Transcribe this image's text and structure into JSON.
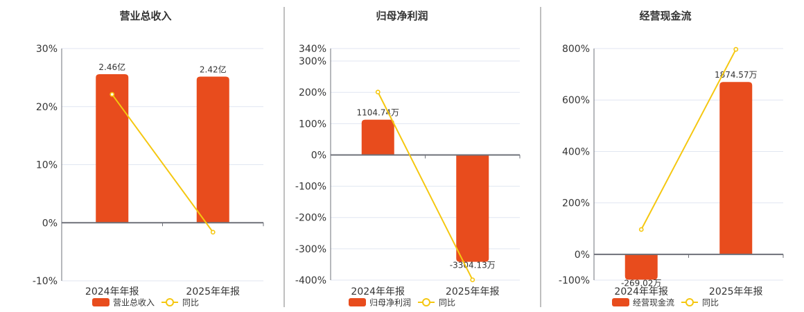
{
  "colors": {
    "bar": "#E84C1D",
    "line": "#F5C710",
    "grid": "#E0E6F1",
    "axis": "#6E7079",
    "separator": "#AAAAAA"
  },
  "chart_data": [
    {
      "type": "bar+line",
      "title": "营业总收入",
      "categories": [
        "2024年年报",
        "2025年年报"
      ],
      "xlabel": "",
      "ylabel": "",
      "ylim": [
        -10,
        30
      ],
      "yticks": [
        30,
        20,
        10,
        0,
        -10
      ],
      "ytick_labels": [
        "30%",
        "20%",
        "10%",
        "0%",
        "-10%"
      ],
      "y2lim": [
        -0.966,
        2.885
      ],
      "grid": true,
      "legend_position": "bottom",
      "legend": {
        "bar_label": "营业总收入",
        "line_label": "同比"
      },
      "series": [
        {
          "name": "营业总收入",
          "type": "bar",
          "axis": "secondary",
          "unit": "亿",
          "values": [
            2.46,
            2.42
          ],
          "labels": [
            "2.46亿",
            "2.42亿"
          ]
        },
        {
          "name": "同比",
          "type": "line",
          "axis": "primary",
          "unit": "%",
          "values": [
            22.1,
            -1.63
          ]
        }
      ]
    },
    {
      "type": "bar+line",
      "title": "归母净利润",
      "categories": [
        "2024年年报",
        "2025年年报"
      ],
      "xlabel": "",
      "ylabel": "",
      "ylim": [
        -400,
        340
      ],
      "yticks": [
        340,
        300,
        200,
        100,
        0,
        -100,
        -200,
        -300,
        -400
      ],
      "ytick_labels": [
        "340%",
        "300%",
        "200%",
        "100%",
        "0%",
        "-100%",
        "-200%",
        "-300%",
        "-400%"
      ],
      "y2lim": [
        -3871,
        3312
      ],
      "grid": true,
      "legend_position": "bottom",
      "legend": {
        "bar_label": "归母净利润",
        "line_label": "同比"
      },
      "series": [
        {
          "name": "归母净利润",
          "type": "bar",
          "axis": "secondary",
          "unit": "万",
          "values": [
            1104.74,
            -3304.13
          ],
          "labels": [
            "1104.74万",
            "-3304.13万"
          ]
        },
        {
          "name": "同比",
          "type": "line",
          "axis": "primary",
          "unit": "%",
          "values": [
            201.0,
            -399.09
          ]
        }
      ]
    },
    {
      "type": "bar+line",
      "title": "经营现金流",
      "categories": [
        "2024年年报",
        "2025年年报"
      ],
      "xlabel": "",
      "ylabel": "",
      "ylim": [
        -100,
        800
      ],
      "yticks": [
        800,
        600,
        400,
        200,
        0,
        -100
      ],
      "ytick_labels": [
        "800%",
        "600%",
        "400%",
        "200%",
        "0%",
        "-100%"
      ],
      "y2lim": [
        -274,
        2237
      ],
      "grid": true,
      "legend_position": "bottom",
      "legend": {
        "bar_label": "经营现金流",
        "line_label": "同比"
      },
      "series": [
        {
          "name": "经营现金流",
          "type": "bar",
          "axis": "secondary",
          "unit": "万",
          "values": [
            -269.02,
            1874.57
          ],
          "labels": [
            "-269.02万",
            "1874.57万"
          ]
        },
        {
          "name": "同比",
          "type": "line",
          "axis": "primary",
          "unit": "%",
          "values": [
            96.7,
            796.8
          ]
        }
      ]
    }
  ]
}
